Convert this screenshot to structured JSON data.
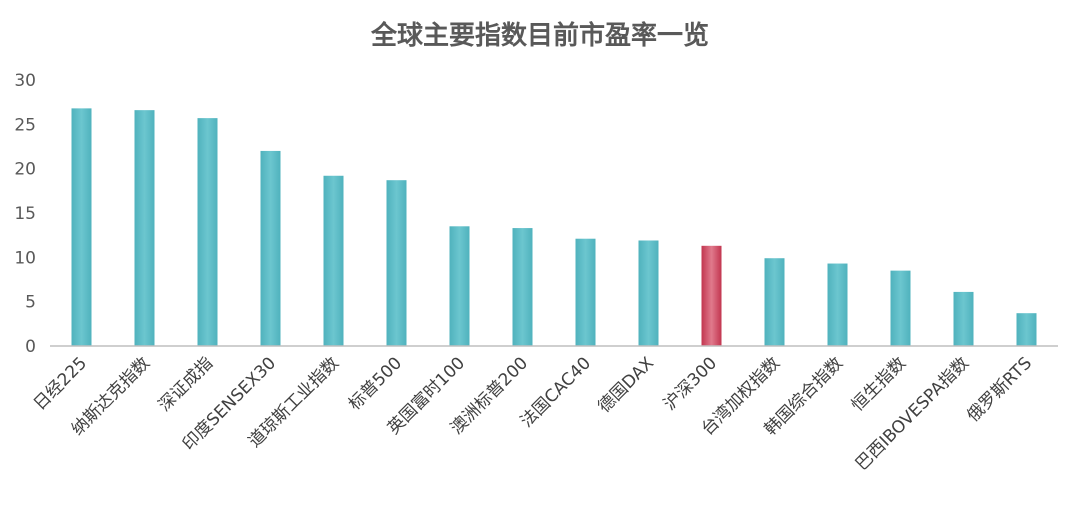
{
  "chart_data": {
    "type": "bar",
    "title": "全球主要指数目前市盈率一览",
    "xlabel": "",
    "ylabel": "",
    "ylim": [
      0,
      30
    ],
    "yticks": [
      0,
      5,
      10,
      15,
      20,
      25,
      30
    ],
    "grid": false,
    "legend": "none",
    "categories": [
      "日经225",
      "纳斯达克指数",
      "深证成指",
      "印度SENSEX30",
      "道琼斯工业指数",
      "标普500",
      "英国富时100",
      "澳洲标普200",
      "法国CAC40",
      "德国DAX",
      "沪深300",
      "台湾加权指数",
      "韩国综合指数",
      "恒生指数",
      "巴西IBOVESPA指数",
      "俄罗斯RTS"
    ],
    "values": [
      26.8,
      26.6,
      25.7,
      22.0,
      19.2,
      18.7,
      13.5,
      13.3,
      12.1,
      11.9,
      11.3,
      9.9,
      9.3,
      8.5,
      6.1,
      3.7
    ],
    "highlight_index": 10,
    "colors": {
      "bar_top": "#4fb2bd",
      "bar_mid": "#6cc6cf",
      "highlight_top": "#c2354f",
      "highlight_mid": "#e07a8c",
      "axis": "#bfbfbf",
      "text": "#595959"
    }
  }
}
